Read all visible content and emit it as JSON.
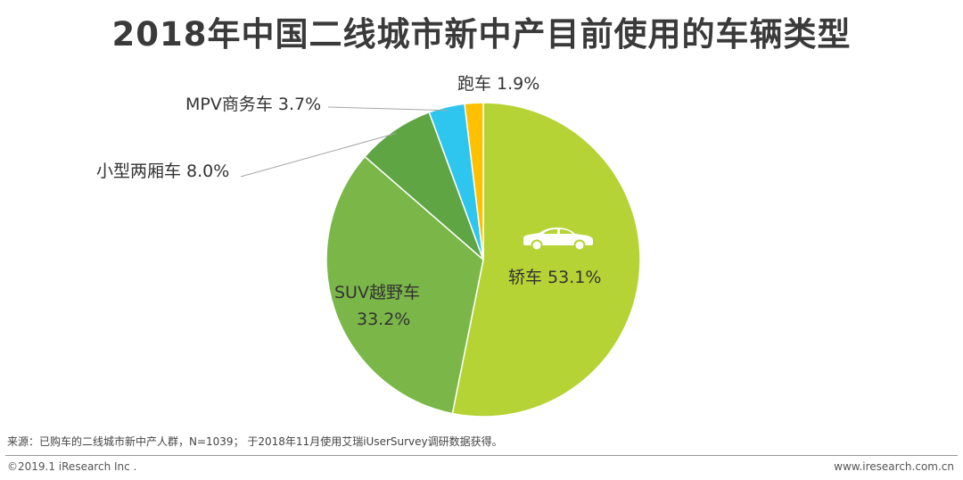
{
  "title": "2018年中国二线城市新中产目前使用的车辆类型",
  "chart_data": {
    "type": "pie",
    "title": "2018年中国二线城市新中产目前使用的车辆类型",
    "start": "12 o'clock, clockwise",
    "slices": [
      {
        "name": "轿车",
        "value": 53.1,
        "label": "轿车 53.1%",
        "color": "#b5d334",
        "icon": "car-icon"
      },
      {
        "name": "SUV越野车",
        "value": 33.2,
        "label_line1": "SUV越野车",
        "label_line2": "33.2%",
        "color": "#7ab648"
      },
      {
        "name": "小型两厢车",
        "value": 8.0,
        "label": "小型两厢车 8.0%",
        "color": "#5fa544"
      },
      {
        "name": "MPV商务车",
        "value": 3.7,
        "label": "MPV商务车 3.7%",
        "color": "#2ec6ef"
      },
      {
        "name": "跑车",
        "value": 1.9,
        "label": "跑车 1.9%",
        "color": "#ffc000"
      }
    ]
  },
  "footer": {
    "source": "来源：已购车的二线城市新中产人群，N=1039； 于2018年11月使用艾瑞iUserSurvey调研数据获得。",
    "copyright": "©2019.1 iResearch Inc .",
    "website": "www.iresearch.com.cn"
  }
}
